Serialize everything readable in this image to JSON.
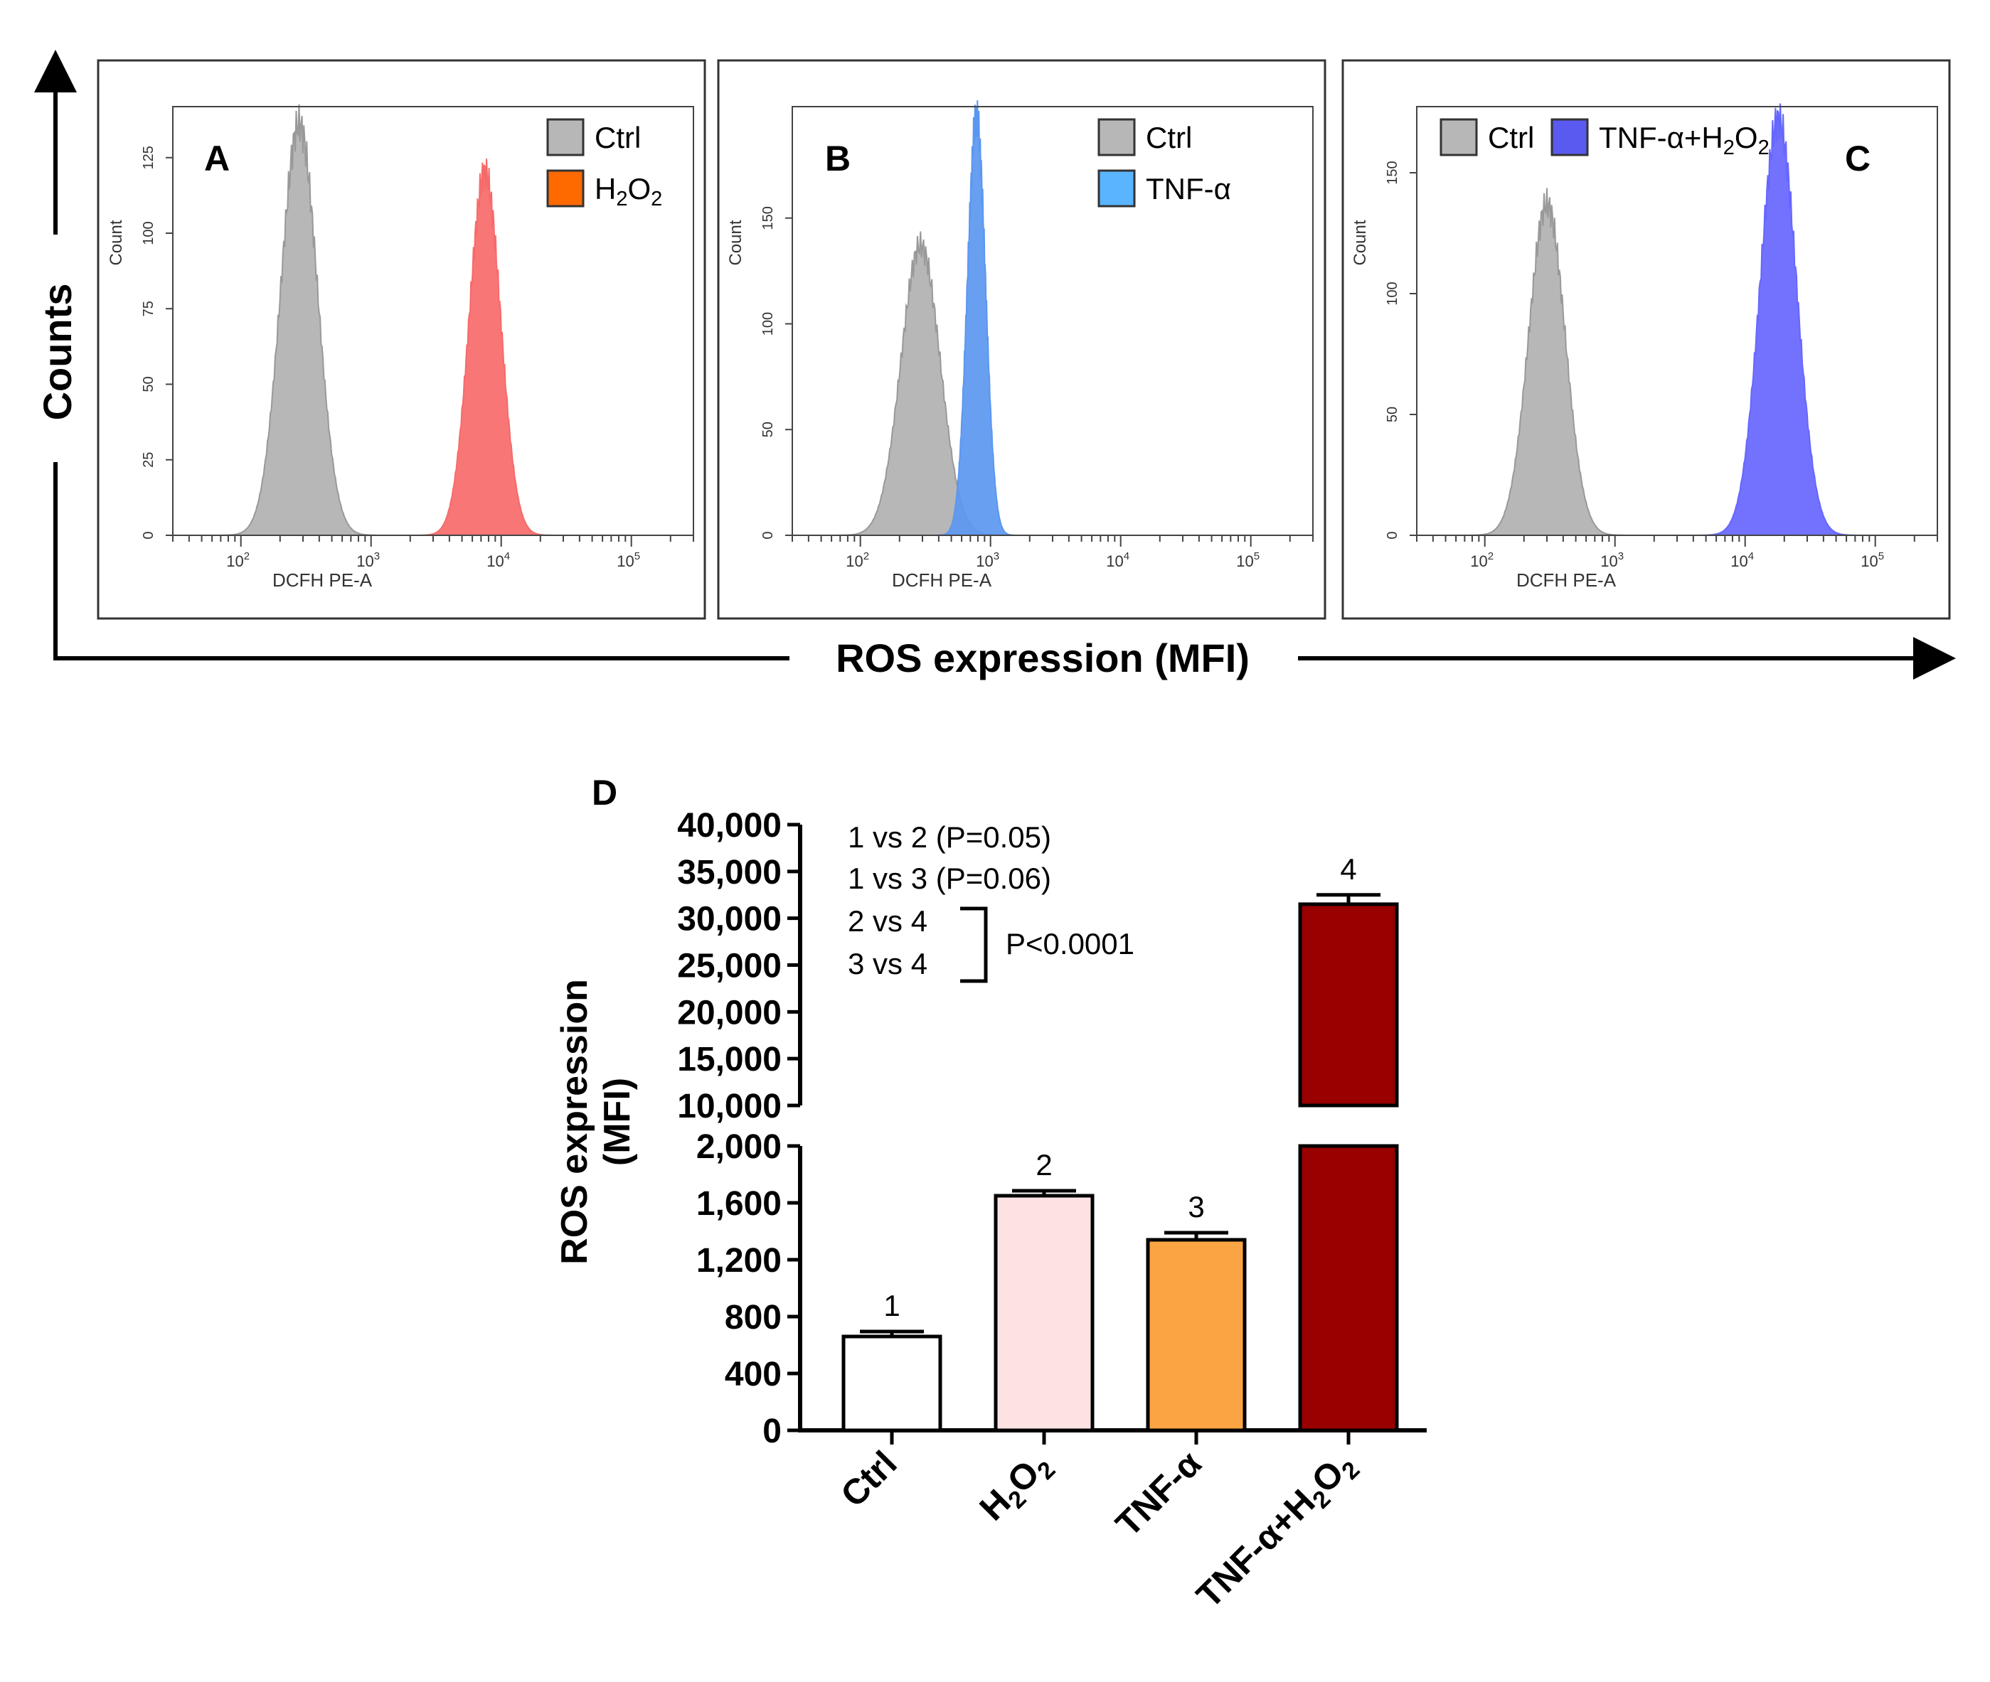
{
  "figure": {
    "y_axis_label": "Counts",
    "x_axis_label": "ROS expression (MFI)"
  },
  "chart_data": [
    {
      "type": "area",
      "panel": "A",
      "ylabel": "Count",
      "xlabel": "DCFH PE-A",
      "xscale": "log",
      "xlim": [
        30,
        300000
      ],
      "ylim": [
        0,
        140
      ],
      "y_ticks": [
        0,
        25,
        50,
        75,
        100,
        125
      ],
      "y_tick_labels": [
        "0",
        "25",
        "50",
        "75",
        "100",
        "125"
      ],
      "x_ticks": [
        100,
        1000,
        10000,
        100000
      ],
      "x_tick_base": "10",
      "x_tick_exps": [
        "2",
        "3",
        "4",
        "5"
      ],
      "legend": [
        {
          "label": "Ctrl",
          "color": "#b7b7b7"
        },
        {
          "label_main": "H",
          "label_sub": "2",
          "label_main2": "O",
          "label_sub2": "2",
          "color": "#ff6a00"
        }
      ],
      "series": [
        {
          "name": "Ctrl",
          "color": "#b7b7b7",
          "peak_x": 280,
          "peak_y": 136,
          "width_decades": 0.14
        },
        {
          "name": "H2O2",
          "color": "#f76a6a",
          "peak_x": 7500,
          "peak_y": 120,
          "width_decades": 0.12
        }
      ]
    },
    {
      "type": "area",
      "panel": "B",
      "ylabel": "Count",
      "xlabel": "DCFH PE-A",
      "xscale": "log",
      "xlim": [
        30,
        300000
      ],
      "ylim": [
        0,
        200
      ],
      "y_ticks": [
        0,
        50,
        100,
        150
      ],
      "y_tick_labels": [
        "0",
        "50",
        "100",
        "150"
      ],
      "x_ticks": [
        100,
        1000,
        10000,
        100000
      ],
      "x_tick_base": "10",
      "x_tick_exps": [
        "2",
        "3",
        "4",
        "5"
      ],
      "legend": [
        {
          "label": "Ctrl",
          "color": "#b7b7b7"
        },
        {
          "label": "TNF-α",
          "color": "#5ab4ff"
        }
      ],
      "series": [
        {
          "name": "Ctrl",
          "color": "#b7b7b7",
          "peak_x": 290,
          "peak_y": 137,
          "width_decades": 0.15
        },
        {
          "name": "TNF-α",
          "color": "#5b97f0",
          "peak_x": 780,
          "peak_y": 198,
          "width_decades": 0.07
        }
      ]
    },
    {
      "type": "area",
      "panel": "C",
      "ylabel": "Count",
      "xlabel": "DCFH PE-A",
      "xscale": "log",
      "xlim": [
        30,
        300000
      ],
      "ylim": [
        0,
        175
      ],
      "y_ticks": [
        0,
        50,
        100,
        150
      ],
      "y_tick_labels": [
        "0",
        "50",
        "100",
        "150"
      ],
      "x_ticks": [
        100,
        1000,
        10000,
        100000
      ],
      "x_tick_base": "10",
      "x_tick_exps": [
        "2",
        "3",
        "4",
        "5"
      ],
      "legend": [
        {
          "label": "Ctrl",
          "color": "#b7b7b7"
        },
        {
          "label_main": "TNF-α+H",
          "label_sub": "2",
          "label_main2": "O",
          "label_sub2": "2",
          "color": "#5a5af0"
        }
      ],
      "series": [
        {
          "name": "Ctrl",
          "color": "#b7b7b7",
          "peak_x": 300,
          "peak_y": 137,
          "width_decades": 0.14
        },
        {
          "name": "TNF-α+H2O2",
          "color": "#6666ff",
          "peak_x": 18000,
          "peak_y": 172,
          "width_decades": 0.14
        }
      ]
    },
    {
      "type": "bar",
      "panel": "D",
      "ylabel_line1": "ROS expression",
      "ylabel_line2": "(MFI)",
      "categories": [
        "Ctrl",
        "H2O2",
        "TNF-α",
        "TNF-α+H2O2"
      ],
      "category_labels": [
        {
          "main": "Ctrl"
        },
        {
          "main": "H",
          "sub": "2",
          "main2": "O",
          "sub2": "2"
        },
        {
          "main": "TNF-α"
        },
        {
          "main": "TNF-",
          "alpha": "α",
          "main2": "+H",
          "sub": "2",
          "main3": "O",
          "sub2": "2"
        }
      ],
      "values": [
        660,
        1650,
        1340,
        31500
      ],
      "errors": [
        35,
        35,
        50,
        1000
      ],
      "bar_numbers": [
        "1",
        "2",
        "3",
        "4"
      ],
      "colors": [
        "#ffffff",
        "#fde2e4",
        "#fba444",
        "#990000"
      ],
      "axis_break": true,
      "lower_range": [
        0,
        2000
      ],
      "upper_range": [
        10000,
        40000
      ],
      "lower_ticks": [
        0,
        400,
        800,
        1200,
        1600,
        2000
      ],
      "lower_tick_labels": [
        "0",
        "400",
        "800",
        "1,200",
        "1,600",
        "2,000"
      ],
      "upper_ticks": [
        10000,
        15000,
        20000,
        25000,
        30000,
        35000,
        40000
      ],
      "upper_tick_labels": [
        "10,000",
        "15,000",
        "20,000",
        "25,000",
        "30,000",
        "35,000",
        "40,000"
      ],
      "annotations": {
        "line1": "1 vs 2 (P=0.05)",
        "line2": "1 vs 3 (P=0.06)",
        "line3": "2 vs 4",
        "line4": "3 vs 4",
        "bracket_label": "P<0.0001"
      }
    }
  ]
}
